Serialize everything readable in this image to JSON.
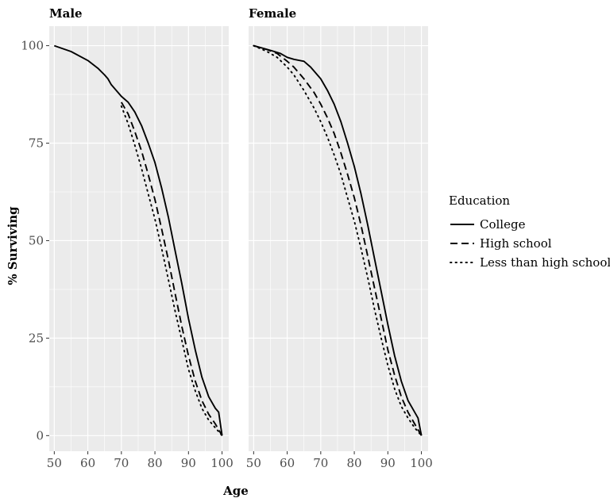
{
  "chart_data": {
    "type": "line",
    "xlabel": "Age",
    "ylabel": "% Surviving",
    "xlim": [
      48.5,
      102
    ],
    "ylim": [
      -4,
      105
    ],
    "x_ticks": [
      50,
      60,
      70,
      80,
      90,
      100
    ],
    "y_ticks": [
      0,
      25,
      50,
      75,
      100
    ],
    "grid": true,
    "legend": {
      "title": "Education",
      "position": "right",
      "entries": [
        "College",
        "High school",
        "Less than high school"
      ]
    },
    "panels": [
      {
        "label": "Male",
        "series": [
          {
            "name": "College",
            "style": "solid",
            "x": [
              50,
              55,
              60,
              63,
              65,
              66,
              67,
              68,
              69,
              70,
              72,
              74,
              76,
              78,
              80,
              82,
              84,
              86,
              88,
              90,
              92,
              94,
              96,
              98,
              99,
              100
            ],
            "y": [
              100,
              98.5,
              96.2,
              94.2,
              92.5,
              91.5,
              90,
              89,
              88,
              87,
              85.5,
              83,
              79.5,
              75,
              70,
              63.5,
              56,
              47.5,
              39,
              30,
              22,
              15,
              10,
              7,
              6,
              0
            ]
          },
          {
            "name": "High school",
            "style": "dashed",
            "x": [
              70,
              72,
              74,
              76,
              78,
              80,
              82,
              84,
              86,
              88,
              90,
              92,
              94,
              96,
              98,
              100
            ],
            "y": [
              85.5,
              82.5,
              78,
              73,
              67,
              60.5,
              53,
              45,
              36.5,
              28,
              20.5,
              14,
              9,
              5.5,
              3,
              0
            ]
          },
          {
            "name": "Less than high school",
            "style": "dotted",
            "x": [
              70,
              72,
              74,
              76,
              78,
              80,
              82,
              84,
              86,
              88,
              90,
              92,
              94,
              96,
              98,
              100
            ],
            "y": [
              84.5,
              80,
              74.5,
              68.5,
              62,
              55.5,
              48,
              40,
              32,
              24.5,
              17,
              11.5,
              7,
              4,
              2,
              0
            ]
          }
        ]
      },
      {
        "label": "Female",
        "series": [
          {
            "name": "College",
            "style": "solid",
            "x": [
              50,
              55,
              58,
              60,
              62,
              65,
              67,
              70,
              72,
              74,
              76,
              78,
              80,
              82,
              84,
              86,
              88,
              90,
              92,
              94,
              96,
              98,
              99,
              100
            ],
            "y": [
              100,
              98.8,
              98,
              97,
              96.5,
              96,
              94.5,
              91.5,
              88.5,
              85,
              80.5,
              75,
              69,
              62,
              54,
              45.5,
              37,
              28.5,
              20.5,
              14,
              9,
              6,
              4.5,
              0
            ]
          },
          {
            "name": "High school",
            "style": "dashed",
            "x": [
              50,
              54,
              57,
              60,
              62,
              65,
              68,
              70,
              72,
              74,
              76,
              78,
              80,
              82,
              84,
              86,
              88,
              90,
              92,
              94,
              96,
              98,
              100
            ],
            "y": [
              100,
              99,
              98,
              96,
              94.5,
              91.5,
              88,
              85,
              81.5,
              77.5,
              72.5,
              67,
              61,
              54,
              46,
              38,
              30,
              22,
              15.5,
              10,
              6,
              3,
              0
            ]
          },
          {
            "name": "Less than high school",
            "style": "dotted",
            "x": [
              50,
              54,
              57,
              60,
              62,
              65,
              68,
              70,
              72,
              74,
              76,
              78,
              80,
              82,
              84,
              86,
              88,
              90,
              92,
              94,
              96,
              98,
              100
            ],
            "y": [
              100,
              98.5,
              97,
              94.5,
              92.5,
              88.5,
              84,
              80.5,
              76.5,
              72,
              67,
              61,
              55,
              48,
              40.5,
              32.5,
              25,
              18,
              12,
              7.5,
              4.5,
              2,
              0
            ]
          }
        ]
      }
    ]
  }
}
